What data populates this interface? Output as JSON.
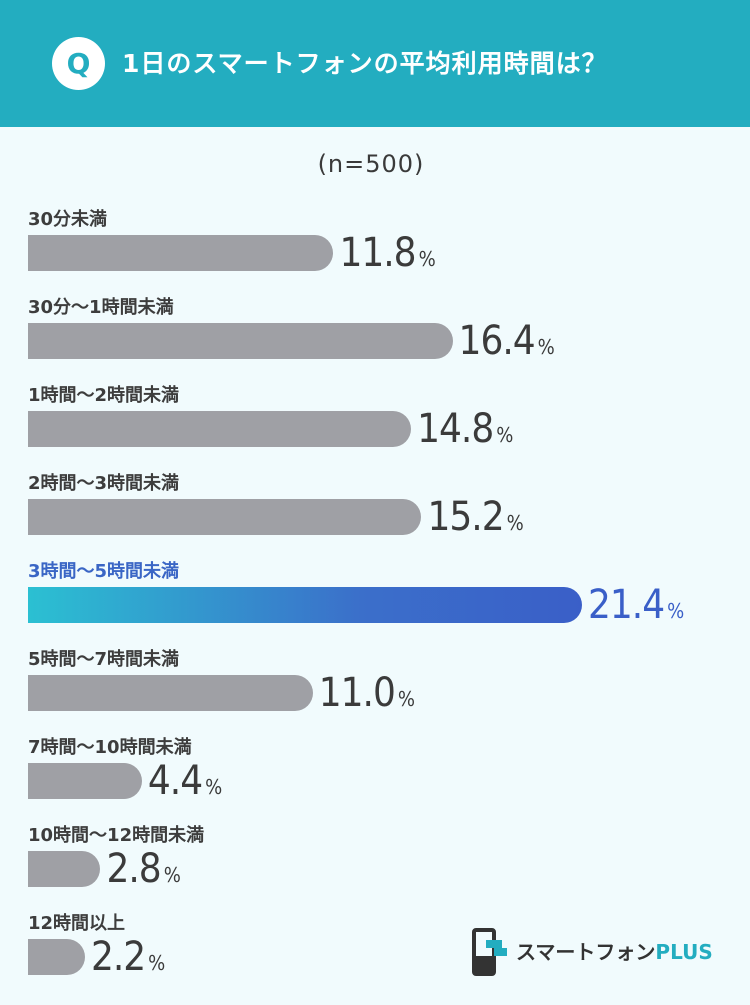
{
  "header": {
    "badge": "Q",
    "title": "1日のスマートフォンの平均利用時間は？"
  },
  "sample_note": "(n=500)",
  "chart_data": {
    "type": "bar",
    "orientation": "horizontal",
    "title": "1日のスマートフォンの平均利用時間は？",
    "categories": [
      "30分未満",
      "30分〜1時間未満",
      "1時間〜2時間未満",
      "2時間〜3時間未満",
      "3時間〜5時間未満",
      "5時間〜7時間未満",
      "7時間〜10時間未満",
      "10時間〜12時間未満",
      "12時間以上"
    ],
    "values": [
      11.8,
      16.4,
      14.8,
      15.2,
      21.4,
      11.0,
      4.4,
      2.8,
      2.2
    ],
    "value_labels": [
      "11.8",
      "16.4",
      "14.8",
      "15.2",
      "21.4",
      "11.0",
      "4.4",
      "2.8",
      "2.2"
    ],
    "unit": "%",
    "highlight_index": 4,
    "colors": {
      "bar": "#9fa0a5",
      "highlight_start": "#2bc0d2",
      "highlight_end": "#3a5fc8",
      "header": "#23adc0"
    }
  },
  "logo": {
    "text_main": "スマートフォン",
    "text_accent": "PLUS"
  }
}
